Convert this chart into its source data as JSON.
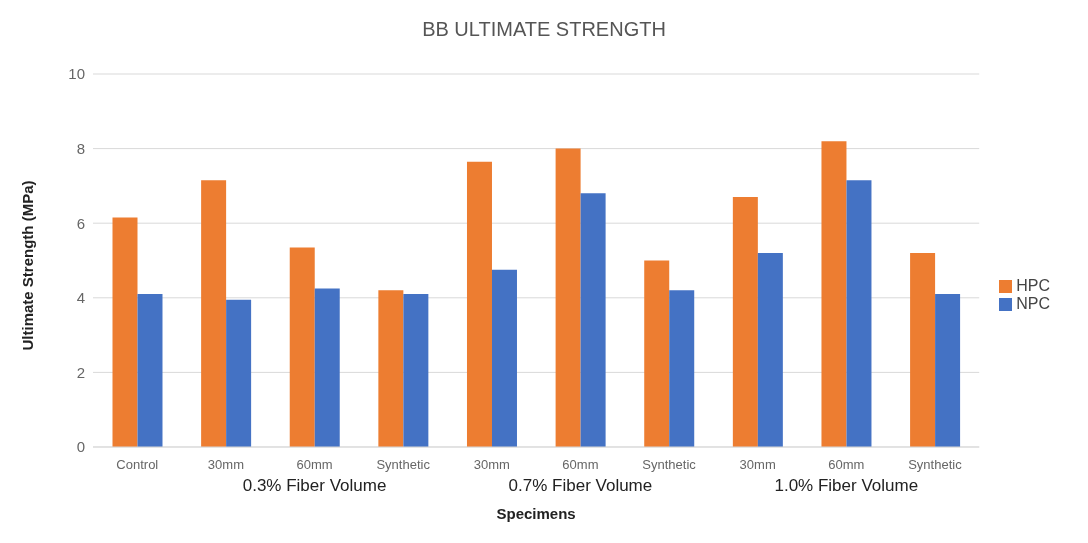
{
  "chart_data": {
    "type": "bar",
    "title": "BB ULTIMATE STRENGTH",
    "xlabel": "Specimens",
    "ylabel": "Ultimate Strength (MPa)",
    "categories": [
      "Control",
      "30mm",
      "60mm",
      "Synthetic",
      "30mm",
      "60mm",
      "Synthetic",
      "30mm",
      "60mm",
      "Synthetic"
    ],
    "series": [
      {
        "name": "HPC",
        "color": "#ed7d31",
        "values": [
          6.15,
          7.15,
          5.35,
          4.2,
          7.65,
          8.0,
          5.0,
          6.7,
          8.2,
          5.2
        ]
      },
      {
        "name": "NPC",
        "color": "#4472c4",
        "values": [
          4.1,
          3.95,
          4.25,
          4.1,
          4.75,
          6.8,
          4.2,
          5.2,
          7.15,
          4.1
        ]
      }
    ],
    "annotations": [
      "0.3% Fiber Volume",
      "0.7% Fiber Volume",
      "1.0% Fiber Volume"
    ],
    "ylim": [
      0,
      10
    ],
    "yticks": [
      0,
      2,
      4,
      6,
      8,
      10
    ],
    "grid": "y",
    "legend": "right"
  }
}
